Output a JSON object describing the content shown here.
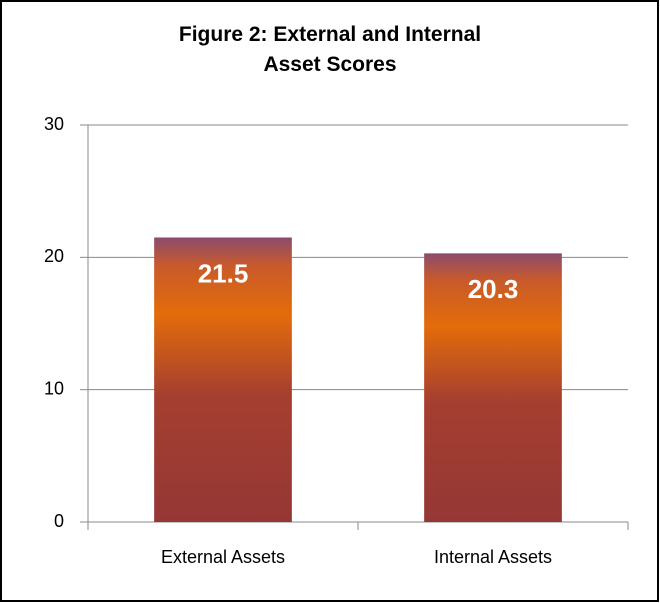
{
  "chart_data": {
    "type": "bar",
    "title": "Figure 2: External and Internal Asset Scores",
    "categories": [
      "External Assets",
      "Internal Assets"
    ],
    "values": [
      21.5,
      20.3
    ],
    "color": "#953735",
    "ylim": [
      0,
      30
    ],
    "yticks": [
      0,
      10,
      20,
      30
    ],
    "grid": true
  }
}
